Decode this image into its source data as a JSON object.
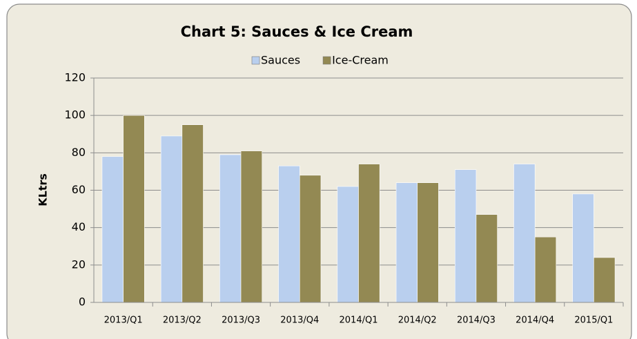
{
  "chart_data": {
    "type": "bar",
    "title": "Chart 5: Sauces & Ice Cream",
    "y_label": "KLtrs",
    "categories": [
      "2013/Q1",
      "2013/Q2",
      "2013/Q3",
      "2013/Q4",
      "2014/Q1",
      "2014/Q2",
      "2014/Q3",
      "2014/Q4",
      "2015/Q1"
    ],
    "series": [
      {
        "name": "Sauces",
        "color": "#b9cfee",
        "values": [
          78,
          89,
          79,
          73,
          62,
          64,
          71,
          74,
          58
        ]
      },
      {
        "name": "Ice-Cream",
        "color": "#938953",
        "values": [
          100,
          95,
          81,
          68,
          74,
          64,
          47,
          35,
          24
        ]
      }
    ],
    "ylim": [
      0,
      120
    ],
    "yticks": [
      0,
      20,
      40,
      60,
      80,
      100,
      120
    ],
    "grid": true
  }
}
